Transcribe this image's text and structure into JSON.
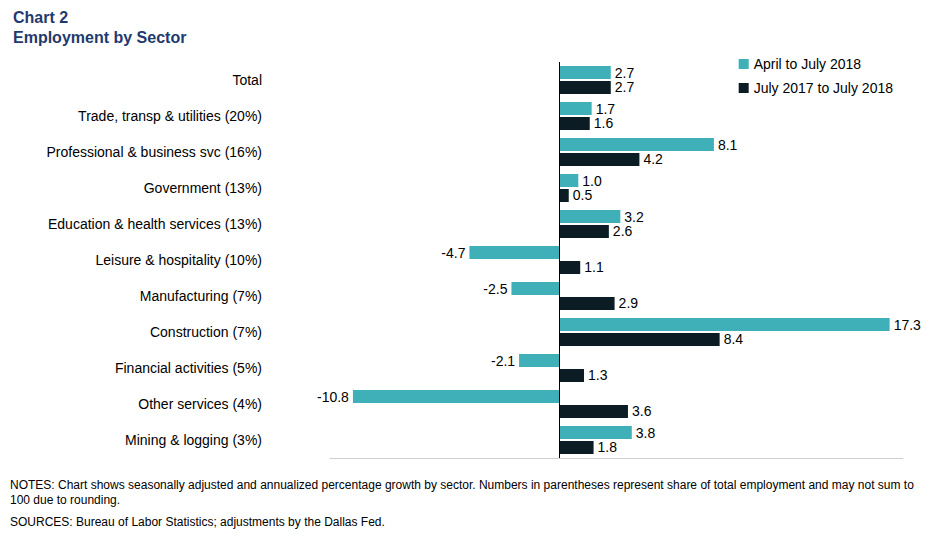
{
  "chart_data": {
    "type": "bar",
    "orientation": "horizontal",
    "title": "Chart 2",
    "subtitle": "Employment by Sector",
    "categories": [
      "Total",
      "Trade, transp & utilities (20%)",
      "Professional & business svc (16%)",
      "Government (13%)",
      "Education & health services (13%)",
      "Leisure & hospitality (10%)",
      "Manufacturing (7%)",
      "Construction (7%)",
      "Financial activities (5%)",
      "Other services (4%)",
      "Mining & logging (3%)"
    ],
    "series": [
      {
        "name": "April to July 2018",
        "color": "#3fb0b8",
        "values": [
          2.7,
          1.7,
          8.1,
          1.0,
          3.2,
          -4.7,
          -2.5,
          17.3,
          -2.1,
          -10.8,
          3.8
        ],
        "value_labels": [
          "2.7",
          "1.7",
          "8.1",
          "1.0",
          "3.2",
          "-4.7",
          "-2.5",
          "17.3",
          "-2.1",
          "-10.8",
          "3.8"
        ]
      },
      {
        "name": "July 2017 to July 2018",
        "color": "#0b1c24",
        "values": [
          2.7,
          1.6,
          4.2,
          0.5,
          2.6,
          1.1,
          2.9,
          8.4,
          1.3,
          3.6,
          1.8
        ]
      }
    ],
    "xlim": [
      -12,
      18
    ],
    "grid": false,
    "legend": "top right",
    "data_labels": true,
    "tick_labels": "y",
    "annotations": [
      "NOTES: Chart shows seasonally adjusted and annualized percentage growth by sector. Numbers in parentheses represent share of total employment and may not sum to 100 due to rounding.",
      "SOURCES: Bureau of Labor Statistics; adjustments by the Dallas Fed."
    ]
  }
}
